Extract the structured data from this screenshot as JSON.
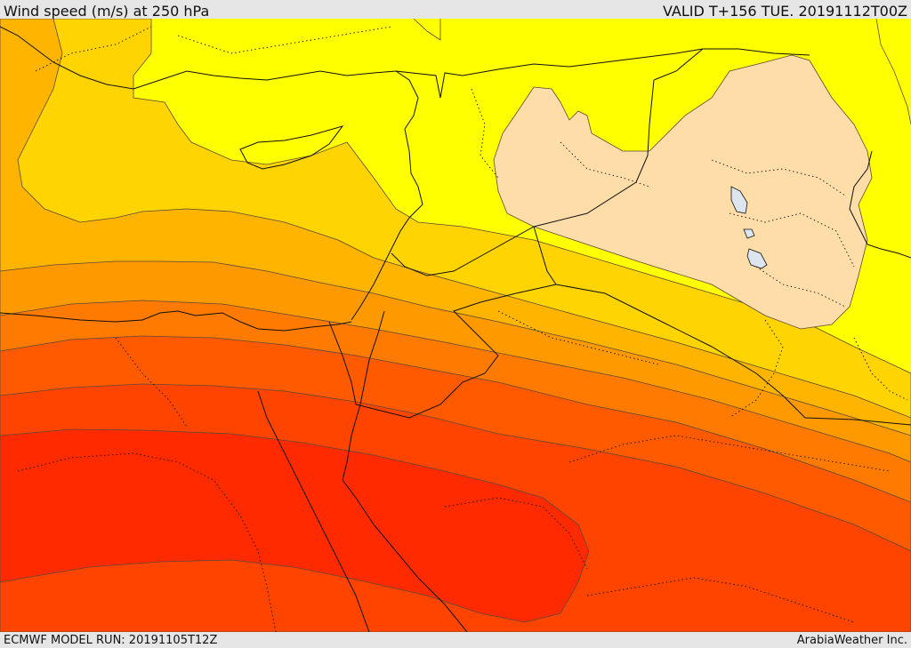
{
  "header": {
    "title": "Wind speed (m/s) at 250 hPa",
    "valid": "VALID T+156 TUE. 20191112T00Z"
  },
  "footer": {
    "model_run": "ECMWF MODEL RUN: 20191105T12Z",
    "credit": "ArabiaWeather Inc."
  },
  "colors": {
    "light_band": "#ffdda8",
    "yellow": "#ffff00",
    "gold": "#ffd400",
    "amber": "#ffb400",
    "orange1": "#ff9900",
    "orange2": "#ff7a00",
    "orange3": "#ff5a00",
    "red_orange": "#ff4400",
    "red": "#ff2a00"
  }
}
